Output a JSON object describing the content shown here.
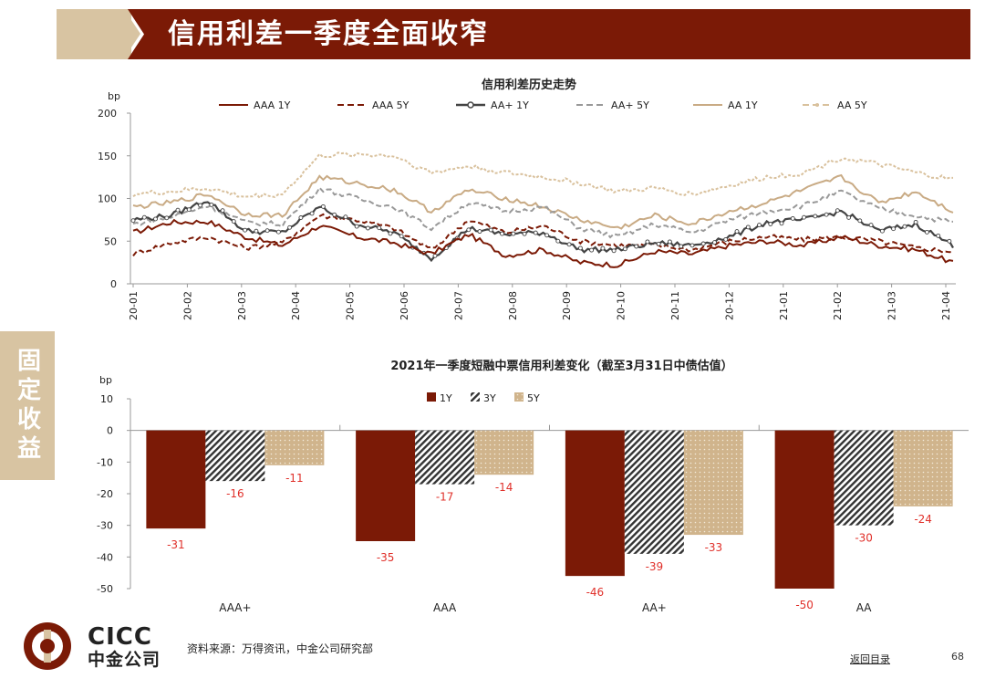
{
  "header": {
    "title": "信用利差一季度全面收窄"
  },
  "side_tab": {
    "label": "固定收益"
  },
  "footer": {
    "logo_en": "CICC",
    "logo_cn": "中金公司",
    "source": "资料来源：万得资讯，中金公司研究部",
    "back_link": "返回目录",
    "page_number": "68"
  },
  "colors": {
    "maroon": "#7b1a06",
    "tan": "#d8c4a2",
    "dark": "#444444",
    "grey": "#999999",
    "light_tan": "#d0b48c",
    "label_red": "#e0302a"
  },
  "chart_data": [
    {
      "type": "line",
      "title": "信用利差历史走势",
      "ylabel": "bp",
      "ylim": [
        0,
        200
      ],
      "yticks": [
        0,
        50,
        100,
        150,
        200
      ],
      "xticks": [
        "20-01",
        "20-02",
        "20-03",
        "20-04",
        "20-05",
        "20-06",
        "20-07",
        "20-08",
        "20-09",
        "20-10",
        "20-11",
        "20-12",
        "21-01",
        "21-02",
        "21-03",
        "21-04"
      ],
      "legend_position": "top",
      "series": [
        {
          "name": "AAA 1Y",
          "color": "#7b1a06",
          "style": "solid",
          "values": [
            60,
            72,
            73,
            55,
            45,
            68,
            55,
            48,
            35,
            58,
            33,
            40,
            25,
            22,
            38,
            35,
            45,
            50,
            45,
            55,
            45,
            40,
            25
          ]
        },
        {
          "name": "AAA 5Y",
          "color": "#7b1a06",
          "style": "dashed",
          "values": [
            35,
            48,
            55,
            42,
            48,
            80,
            75,
            65,
            40,
            75,
            60,
            68,
            50,
            45,
            45,
            40,
            50,
            55,
            52,
            55,
            50,
            42,
            38
          ]
        },
        {
          "name": "AA+ 1Y",
          "color": "#444444",
          "style": "marker",
          "values": [
            75,
            80,
            98,
            62,
            60,
            90,
            70,
            60,
            30,
            65,
            58,
            60,
            40,
            40,
            48,
            45,
            55,
            72,
            75,
            85,
            62,
            70,
            45
          ]
        },
        {
          "name": "AA+ 5Y",
          "color": "#999999",
          "style": "dashed",
          "values": [
            70,
            78,
            92,
            72,
            70,
            112,
            100,
            90,
            65,
            95,
            85,
            90,
            65,
            55,
            70,
            60,
            75,
            85,
            92,
            108,
            88,
            80,
            72
          ]
        },
        {
          "name": "AA 1Y",
          "color": "#c9ab85",
          "style": "solid",
          "values": [
            90,
            95,
            105,
            82,
            80,
            125,
            118,
            110,
            85,
            110,
            100,
            90,
            75,
            65,
            80,
            70,
            85,
            95,
            110,
            125,
            95,
            108,
            85
          ]
        },
        {
          "name": "AA 5Y",
          "color": "#d9c19d",
          "style": "dashed-dotted",
          "values": [
            105,
            108,
            112,
            102,
            105,
            150,
            152,
            150,
            130,
            138,
            130,
            125,
            118,
            108,
            112,
            105,
            115,
            125,
            130,
            148,
            140,
            130,
            122
          ]
        }
      ]
    },
    {
      "type": "bar",
      "title": "2021年一季度短融中票信用利差变化（截至3月31日中债估值）",
      "ylabel": "bp",
      "ylim": [
        -50,
        10
      ],
      "yticks": [
        10,
        0,
        -10,
        -20,
        -30,
        -40,
        -50
      ],
      "categories": [
        "AAA+",
        "AAA",
        "AA+",
        "AA"
      ],
      "legend_position": "top",
      "series": [
        {
          "name": "1Y",
          "color": "#7b1a06",
          "values": [
            -31,
            -35,
            -46,
            -50
          ]
        },
        {
          "name": "3Y",
          "color": "#444444",
          "pattern": "hatch",
          "values": [
            -16,
            -17,
            -39,
            -30
          ]
        },
        {
          "name": "5Y",
          "color": "#d0b48c",
          "pattern": "dots",
          "values": [
            -11,
            -14,
            -33,
            -24
          ]
        }
      ]
    }
  ]
}
